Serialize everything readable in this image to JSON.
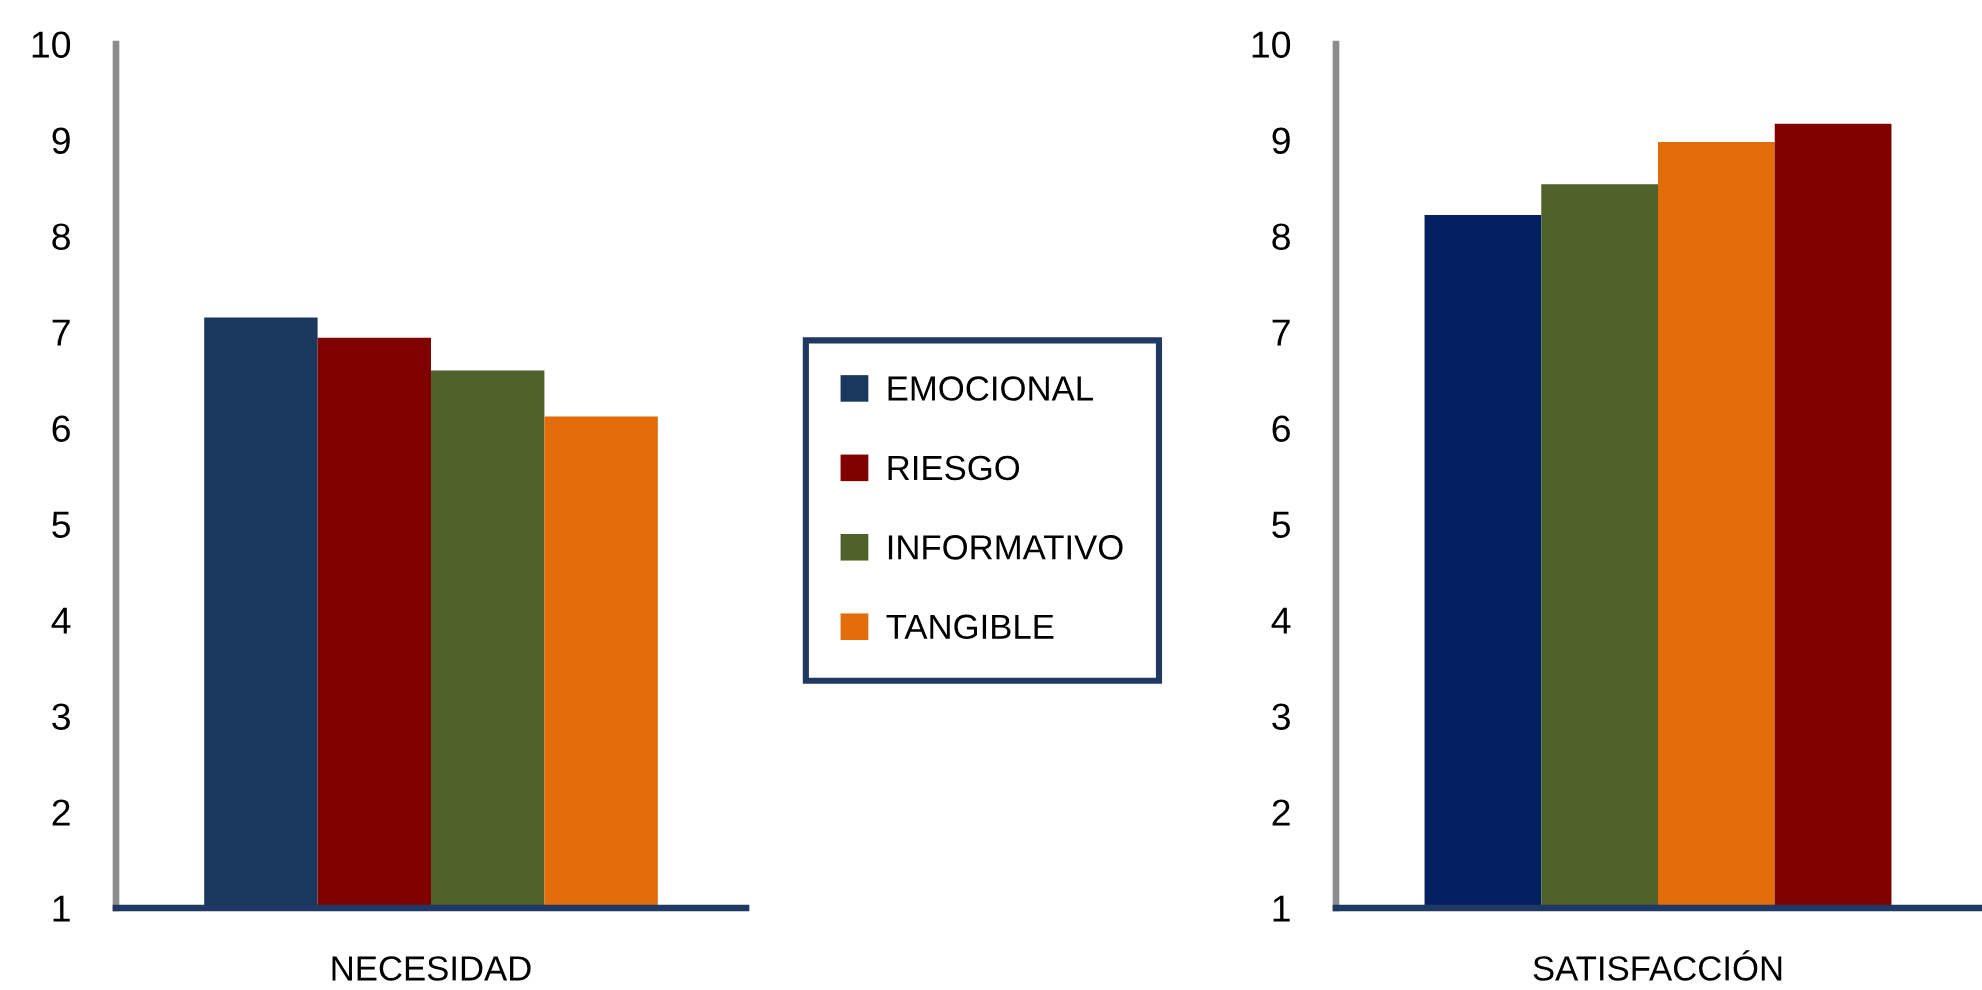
{
  "chart_data": [
    {
      "type": "bar",
      "xlabel": "NECESIDAD",
      "categories": [
        null,
        null,
        null,
        null
      ],
      "series": [
        {
          "name": "EMOCIONAL",
          "color": "#1a385e",
          "values": [
            7.15,
            null,
            null,
            null
          ]
        },
        {
          "name": "RIESGO",
          "color": "#800000",
          "values": [
            null,
            6.94,
            null,
            null
          ]
        },
        {
          "name": "INFORMATIVO",
          "color": "#4f622a",
          "values": [
            null,
            null,
            6.6,
            null
          ]
        },
        {
          "name": "TANGIBLE",
          "color": "#e36c0a",
          "values": [
            null,
            null,
            null,
            6.12
          ]
        }
      ],
      "ylim": [
        1,
        10
      ],
      "yticks": [
        1,
        2,
        3,
        4,
        5,
        6,
        7,
        8,
        9,
        10
      ],
      "legend": "right"
    },
    {
      "type": "bar",
      "xlabel": "SATISFACCIÓN",
      "categories": [
        null,
        null,
        null,
        null
      ],
      "values": [
        8.22,
        8.54,
        8.98,
        9.17
      ],
      "colors": [
        "#022060",
        "#4f622a",
        "#e36c0a",
        "#800000"
      ],
      "ylim": [
        1,
        10
      ],
      "yticks": [
        1,
        2,
        3,
        4,
        5,
        6,
        7,
        8,
        9,
        10
      ]
    }
  ]
}
